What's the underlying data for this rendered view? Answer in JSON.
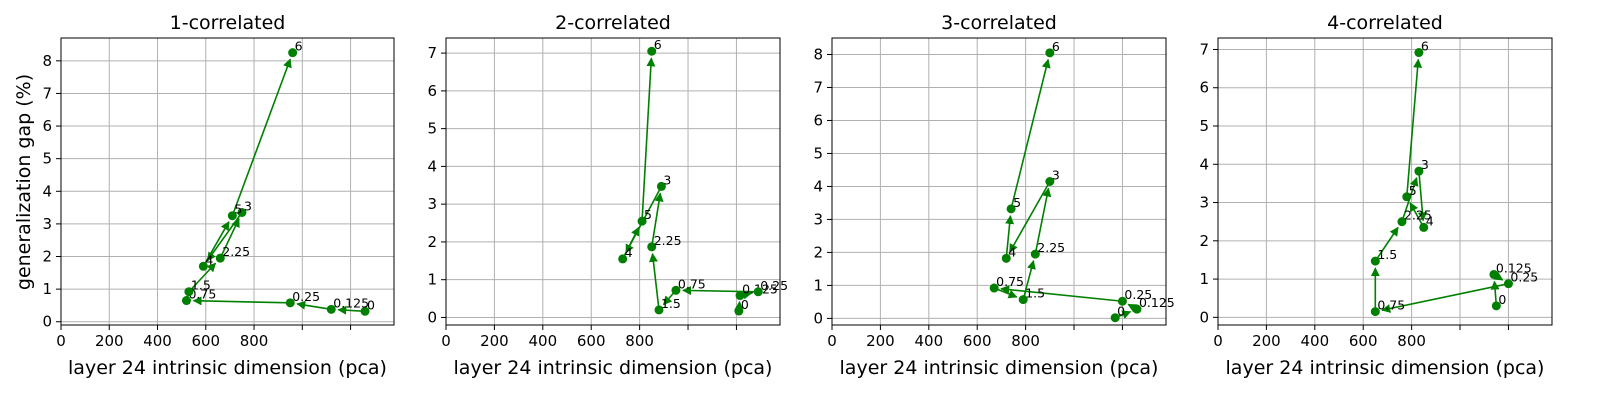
{
  "figure": {
    "ylabel": "generalization gap (%)",
    "series_color": "#008000"
  },
  "chart_data": [
    {
      "type": "line",
      "title": "1-correlated",
      "xlabel": "layer 24 intrinsic dimension (pca)",
      "ylabel": "generalization gap (%)",
      "xlim": [
        0,
        1380
      ],
      "ylim": [
        -0.1,
        8.7
      ],
      "xticks": [
        0,
        200,
        400,
        600,
        800
      ],
      "yticks": [
        0,
        1,
        2,
        3,
        4,
        5,
        6,
        7,
        8
      ],
      "grid": true,
      "arrows": true,
      "points": [
        {
          "label": "0",
          "x": 1260,
          "y": 0.32
        },
        {
          "label": "0.125",
          "x": 1120,
          "y": 0.38
        },
        {
          "label": "0.25",
          "x": 950,
          "y": 0.58
        },
        {
          "label": "0.75",
          "x": 520,
          "y": 0.65
        },
        {
          "label": "1.5",
          "x": 530,
          "y": 0.92
        },
        {
          "label": "2.25",
          "x": 660,
          "y": 1.95
        },
        {
          "label": "3",
          "x": 750,
          "y": 3.35
        },
        {
          "label": "4",
          "x": 590,
          "y": 1.7
        },
        {
          "label": "5",
          "x": 710,
          "y": 3.25
        },
        {
          "label": "6",
          "x": 960,
          "y": 8.25
        }
      ]
    },
    {
      "type": "line",
      "title": "2-correlated",
      "xlabel": "layer 24 intrinsic dimension (pca)",
      "ylabel": "",
      "xlim": [
        0,
        1380
      ],
      "ylim": [
        -0.2,
        7.4
      ],
      "xticks": [
        0,
        200,
        400,
        600,
        800
      ],
      "yticks": [
        0,
        1,
        2,
        3,
        4,
        5,
        6,
        7
      ],
      "grid": true,
      "arrows": true,
      "points": [
        {
          "label": "0",
          "x": 1210,
          "y": 0.17
        },
        {
          "label": "0.125",
          "x": 1215,
          "y": 0.58
        },
        {
          "label": "0.25",
          "x": 1290,
          "y": 0.68
        },
        {
          "label": "0.75",
          "x": 950,
          "y": 0.72
        },
        {
          "label": "1.5",
          "x": 880,
          "y": 0.2
        },
        {
          "label": "2.25",
          "x": 850,
          "y": 1.87
        },
        {
          "label": "3",
          "x": 890,
          "y": 3.47
        },
        {
          "label": "4",
          "x": 730,
          "y": 1.55
        },
        {
          "label": "5",
          "x": 810,
          "y": 2.55
        },
        {
          "label": "6",
          "x": 850,
          "y": 7.05
        }
      ]
    },
    {
      "type": "line",
      "title": "3-correlated",
      "xlabel": "layer 24 intrinsic dimension (pca)",
      "ylabel": "",
      "xlim": [
        0,
        1380
      ],
      "ylim": [
        -0.2,
        8.5
      ],
      "xticks": [
        0,
        200,
        400,
        600,
        800
      ],
      "yticks": [
        0,
        1,
        2,
        3,
        4,
        5,
        6,
        7,
        8
      ],
      "grid": true,
      "arrows": true,
      "points": [
        {
          "label": "0",
          "x": 1170,
          "y": 0.02
        },
        {
          "label": "0.125",
          "x": 1260,
          "y": 0.28
        },
        {
          "label": "0.25",
          "x": 1200,
          "y": 0.52
        },
        {
          "label": "0.75",
          "x": 670,
          "y": 0.92
        },
        {
          "label": "1.5",
          "x": 790,
          "y": 0.57
        },
        {
          "label": "2.25",
          "x": 840,
          "y": 1.95
        },
        {
          "label": "3",
          "x": 900,
          "y": 4.15
        },
        {
          "label": "4",
          "x": 720,
          "y": 1.82
        },
        {
          "label": "5",
          "x": 740,
          "y": 3.32
        },
        {
          "label": "6",
          "x": 900,
          "y": 8.05
        }
      ]
    },
    {
      "type": "line",
      "title": "4-correlated",
      "xlabel": "layer 24 intrinsic dimension (pca)",
      "ylabel": "",
      "xlim": [
        0,
        1380
      ],
      "ylim": [
        -0.2,
        7.3
      ],
      "xticks": [
        0,
        200,
        400,
        600,
        800
      ],
      "yticks": [
        0,
        1,
        2,
        3,
        4,
        5,
        6,
        7
      ],
      "grid": true,
      "arrows": true,
      "points": [
        {
          "label": "0",
          "x": 1150,
          "y": 0.3
        },
        {
          "label": "0.125",
          "x": 1140,
          "y": 1.12
        },
        {
          "label": "0.25",
          "x": 1200,
          "y": 0.88
        },
        {
          "label": "0.75",
          "x": 650,
          "y": 0.15
        },
        {
          "label": "1.5",
          "x": 650,
          "y": 1.47
        },
        {
          "label": "2.25",
          "x": 760,
          "y": 2.5
        },
        {
          "label": "3",
          "x": 830,
          "y": 3.82
        },
        {
          "label": "4",
          "x": 850,
          "y": 2.35
        },
        {
          "label": "5",
          "x": 780,
          "y": 3.15
        },
        {
          "label": "6",
          "x": 830,
          "y": 6.92
        }
      ]
    }
  ]
}
